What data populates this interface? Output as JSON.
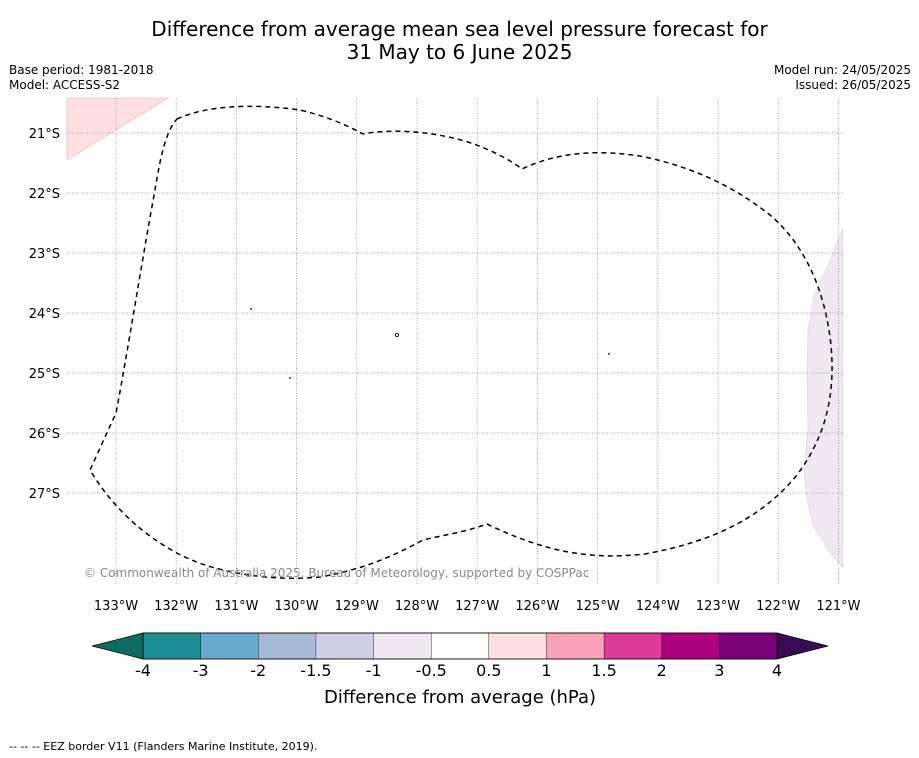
{
  "title": {
    "line1": "Difference from average mean sea level pressure forecast for",
    "line2": "31 May to 6 June 2025"
  },
  "meta": {
    "base_period": "Base period: 1981-2018",
    "model": "Model: ACCESS-S2",
    "model_run": "Model run: 24/05/2025",
    "issued": "Issued: 26/05/2025"
  },
  "map": {
    "latitude_labels": [
      "21°S",
      "22°S",
      "23°S",
      "24°S",
      "25°S",
      "26°S",
      "27°S"
    ],
    "longitude_labels": [
      "133°W",
      "132°W",
      "131°W",
      "130°W",
      "129°W",
      "128°W",
      "127°W",
      "126°W",
      "125°W",
      "124°W",
      "123°W",
      "122°W",
      "121°W"
    ],
    "copyright": "© Commonwealth of Australia 2025, Bureau of Meteorology, supported by COSPPac",
    "gridlines": true,
    "border_style": "dashed"
  },
  "colorbar": {
    "title": "Difference from average (hPa)",
    "ticks": [
      "-4",
      "-3",
      "-2",
      "-1.5",
      "-1",
      "-0.5",
      "0.5",
      "1",
      "1.5",
      "2",
      "3",
      "4"
    ],
    "under_color": "#0b6b60",
    "over_color": "#3a0a55",
    "colors": [
      "#1b8f93",
      "#67aad0",
      "#a7bbd9",
      "#cfcfe6",
      "#f1e9f2",
      "#ffffff",
      "#fde0df",
      "#f8a1b8",
      "#de3b9c",
      "#ae017e",
      "#7a0177"
    ]
  },
  "footer": "-- -- -- EEZ border V11 (Flanders Marine Institute, 2019)."
}
